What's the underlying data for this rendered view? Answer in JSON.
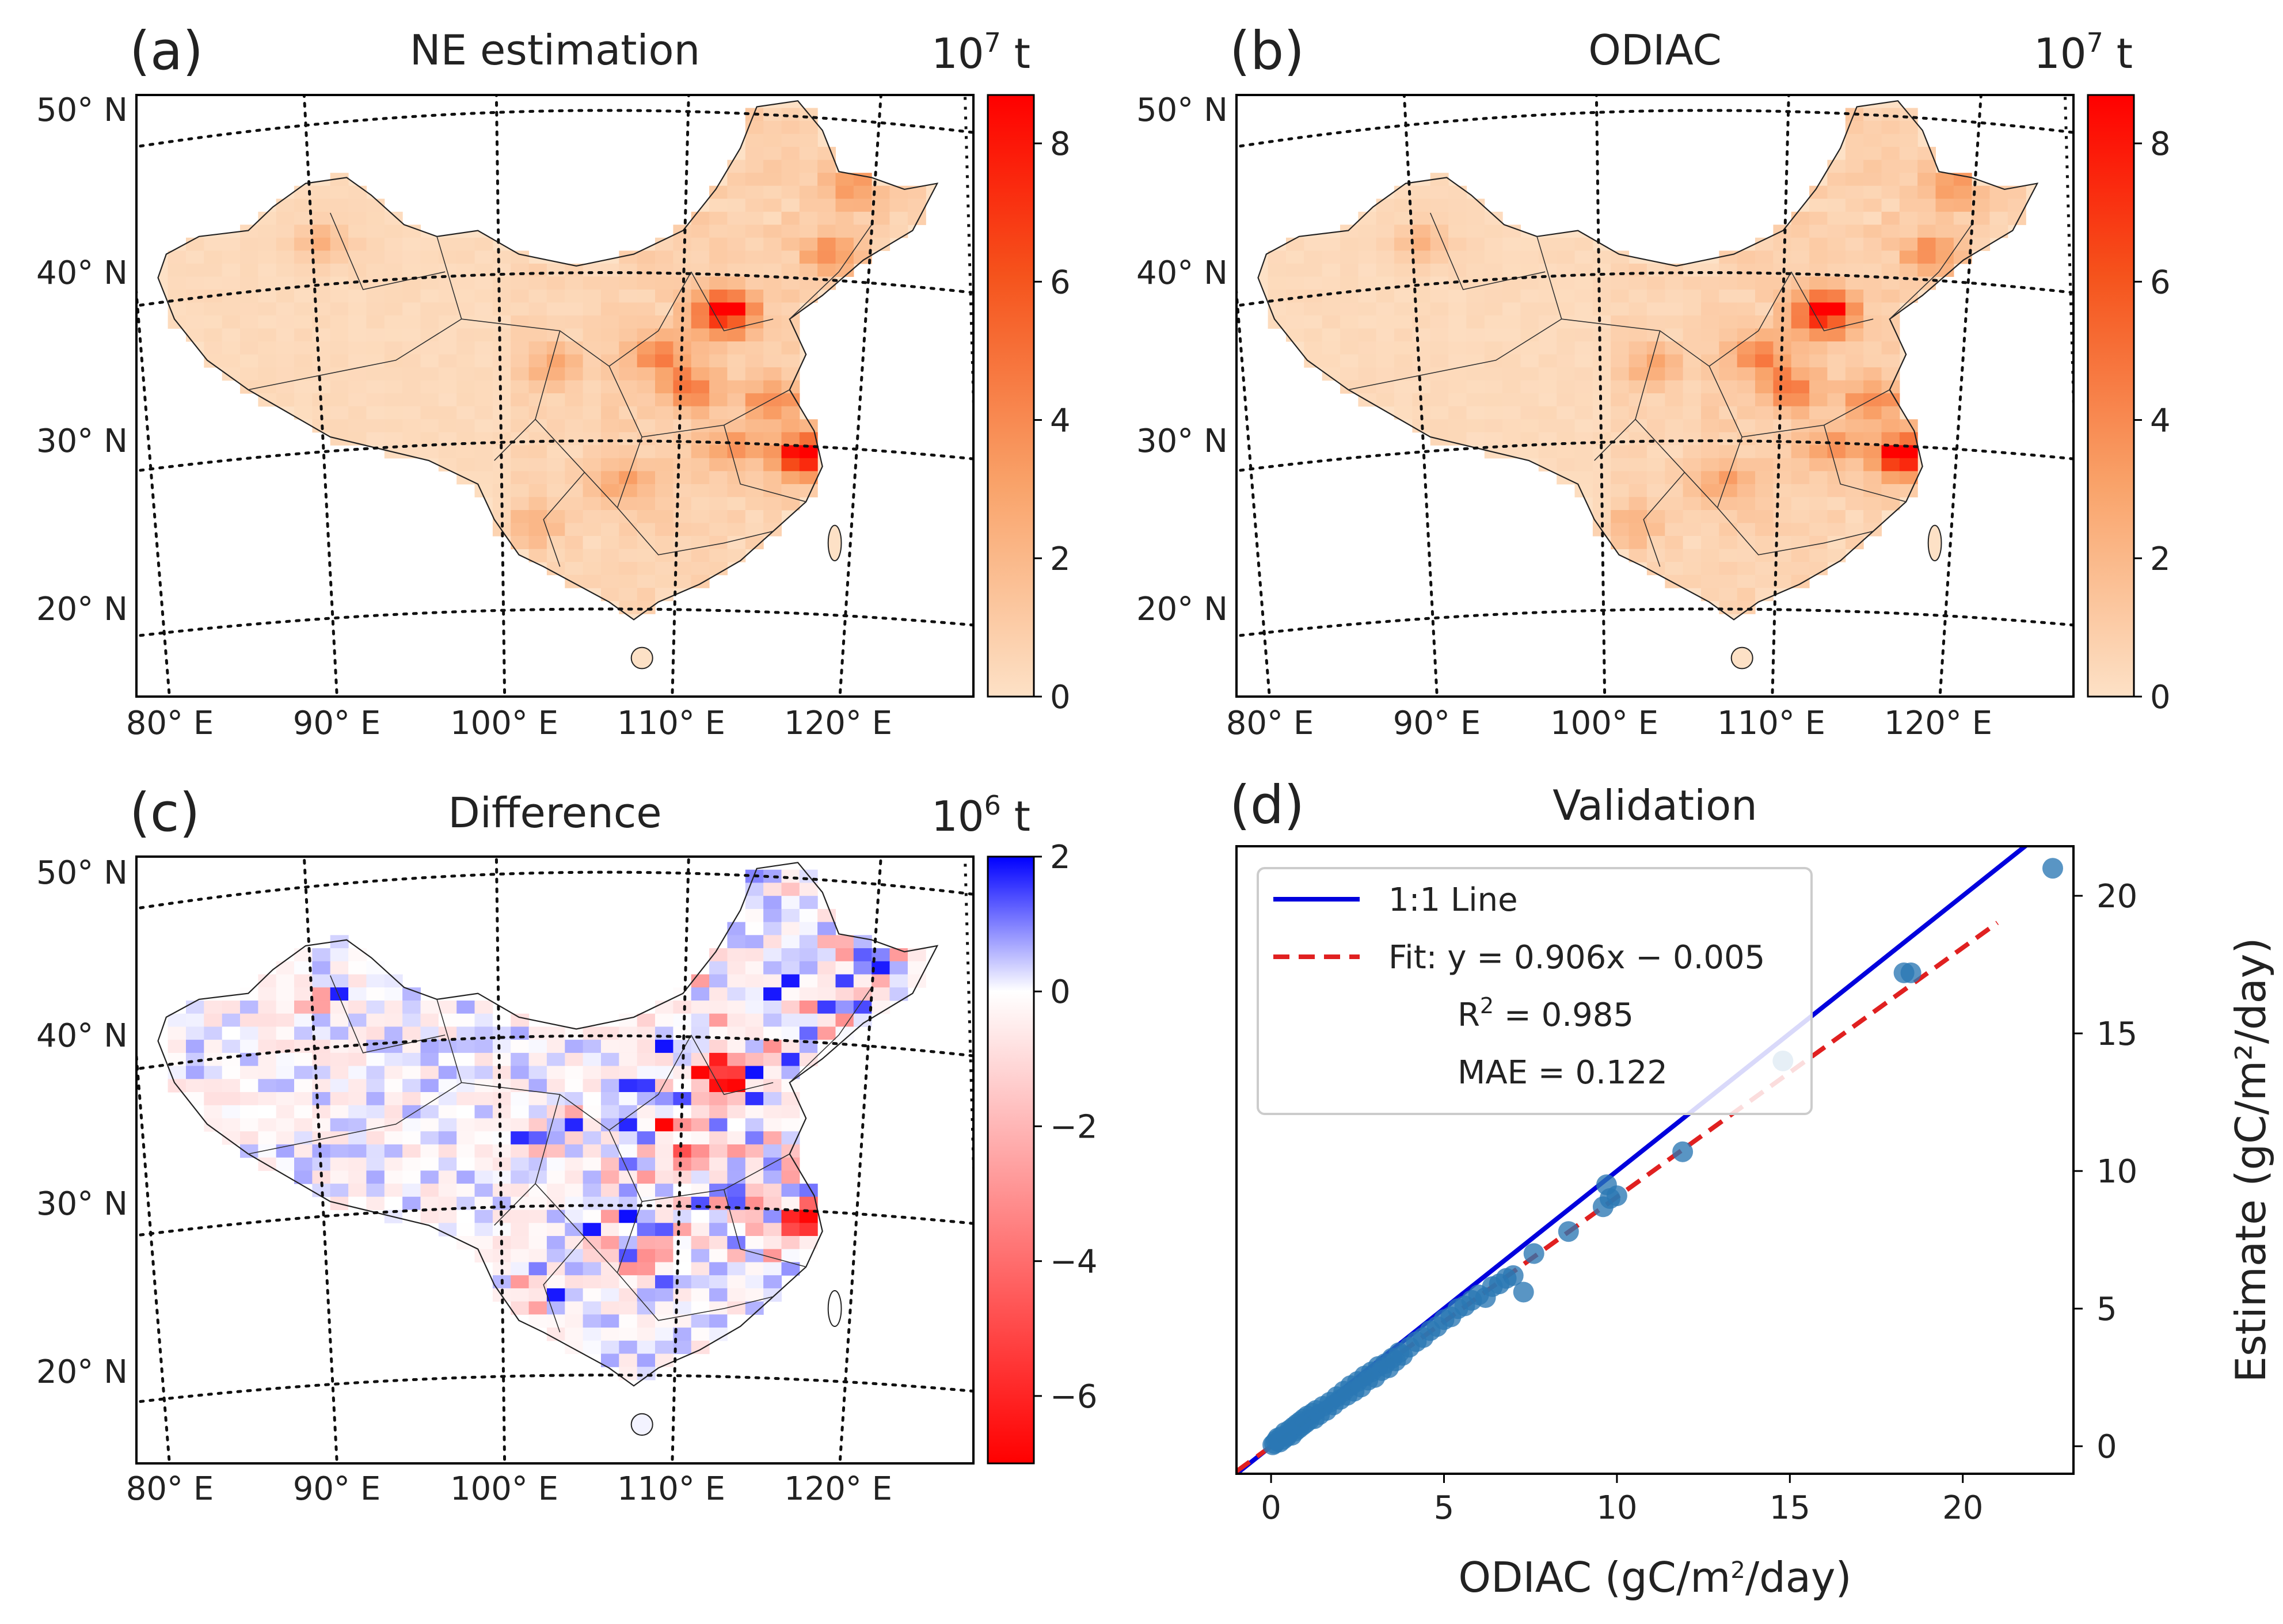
{
  "figure": {
    "panels": [
      {
        "id": "a",
        "label": "(a)",
        "title": "NE estimation",
        "colorbar_unit_base": "10",
        "colorbar_unit_exp": "7",
        "colorbar_unit_suffix": " t",
        "colorbar_ticks": [
          "0",
          "2",
          "4",
          "6",
          "8"
        ],
        "lat_labels": [
          "50° N",
          "40° N",
          "30° N",
          "20° N"
        ],
        "lon_labels": [
          "80° E",
          "90° E",
          "100° E",
          "110° E",
          "120° E"
        ]
      },
      {
        "id": "b",
        "label": "(b)",
        "title": "ODIAC",
        "colorbar_unit_base": "10",
        "colorbar_unit_exp": "7",
        "colorbar_unit_suffix": " t",
        "colorbar_ticks": [
          "0",
          "2",
          "4",
          "6",
          "8"
        ],
        "lat_labels": [
          "50° N",
          "40° N",
          "30° N",
          "20° N"
        ],
        "lon_labels": [
          "80° E",
          "90° E",
          "100° E",
          "110° E",
          "120° E"
        ]
      },
      {
        "id": "c",
        "label": "(c)",
        "title": "Difference",
        "colorbar_unit_base": "10",
        "colorbar_unit_exp": "6",
        "colorbar_unit_suffix": " t",
        "colorbar_ticks": [
          "2",
          "0",
          "−2",
          "−4",
          "−6"
        ],
        "lat_labels": [
          "50° N",
          "40° N",
          "30° N",
          "20° N"
        ],
        "lon_labels": [
          "80° E",
          "90° E",
          "100° E",
          "110° E",
          "120° E"
        ]
      }
    ],
    "colors": {
      "emission_low": "#fde1c6",
      "emission_high": "#ff0000",
      "diff_pos": "#0000ff",
      "diff_zero": "#ffffff",
      "diff_neg": "#ff0000",
      "one_to_one": "#0000dd",
      "fit": "#e02020",
      "points": "#2a77b4"
    }
  },
  "chart_data": [
    {
      "type": "heatmap",
      "panel": "a",
      "title": "NE estimation",
      "colorbar": {
        "min": 0,
        "max": 8.7,
        "ticks": [
          0,
          2,
          4,
          6,
          8
        ],
        "unit": "10^7 t"
      },
      "lat_ticks": [
        50,
        40,
        30,
        20
      ],
      "lon_ticks": [
        80,
        90,
        100,
        110,
        120
      ]
    },
    {
      "type": "heatmap",
      "panel": "b",
      "title": "ODIAC",
      "colorbar": {
        "min": 0,
        "max": 8.7,
        "ticks": [
          0,
          2,
          4,
          6,
          8
        ],
        "unit": "10^7 t"
      },
      "lat_ticks": [
        50,
        40,
        30,
        20
      ],
      "lon_ticks": [
        80,
        90,
        100,
        110,
        120
      ]
    },
    {
      "type": "heatmap",
      "panel": "c",
      "title": "Difference",
      "colorbar": {
        "min": -7,
        "max": 2,
        "ticks": [
          2,
          0,
          -2,
          -4,
          -6
        ],
        "unit": "10^6 t"
      },
      "lat_ticks": [
        50,
        40,
        30,
        20
      ],
      "lon_ticks": [
        80,
        90,
        100,
        110,
        120
      ]
    },
    {
      "type": "scatter",
      "panel": "d",
      "label": "(d)",
      "title": "Validation",
      "xlabel_pre": "ODIAC (gC/m",
      "xlabel_sup": "2",
      "xlabel_post": "/day)",
      "ylabel": "Estimate (gC/m²/day)",
      "xlim": [
        -1,
        23.2
      ],
      "ylim": [
        -1,
        21.8
      ],
      "xticks": [
        0,
        5,
        10,
        15,
        20
      ],
      "yticks": [
        0,
        5,
        10,
        15,
        20
      ],
      "xtick_labels": [
        "0",
        "5",
        "10",
        "15",
        "20"
      ],
      "ytick_labels": [
        "0",
        "5",
        "10",
        "15",
        "20"
      ],
      "legend": {
        "line_label": "1:1 Line",
        "fit_label": "Fit: y = 0.906x − 0.005",
        "r2_pre": "R",
        "r2_sup": "2",
        "r2_post": " = 0.985",
        "mae": "MAE = 0.122"
      },
      "fit": {
        "slope": 0.906,
        "intercept": -0.005,
        "x_range": [
          -1,
          21
        ]
      },
      "points": [
        [
          0.05,
          0.05
        ],
        [
          0.1,
          0.1
        ],
        [
          0.15,
          0.2
        ],
        [
          0.2,
          0.3
        ],
        [
          0.25,
          0.15
        ],
        [
          0.3,
          0.35
        ],
        [
          0.35,
          0.25
        ],
        [
          0.4,
          0.5
        ],
        [
          0.45,
          0.35
        ],
        [
          0.5,
          0.45
        ],
        [
          0.55,
          0.6
        ],
        [
          0.6,
          0.4
        ],
        [
          0.65,
          0.7
        ],
        [
          0.7,
          0.55
        ],
        [
          0.75,
          0.8
        ],
        [
          0.8,
          0.65
        ],
        [
          0.85,
          0.9
        ],
        [
          0.9,
          0.75
        ],
        [
          0.95,
          1.0
        ],
        [
          1.0,
          0.85
        ],
        [
          1.05,
          1.1
        ],
        [
          1.1,
          0.95
        ],
        [
          1.2,
          1.2
        ],
        [
          1.25,
          1.0
        ],
        [
          1.3,
          1.3
        ],
        [
          1.4,
          1.15
        ],
        [
          1.5,
          1.45
        ],
        [
          1.6,
          1.3
        ],
        [
          1.7,
          1.6
        ],
        [
          1.8,
          1.5
        ],
        [
          1.9,
          1.8
        ],
        [
          2.0,
          1.7
        ],
        [
          2.1,
          2.0
        ],
        [
          2.2,
          1.85
        ],
        [
          2.3,
          2.2
        ],
        [
          2.4,
          2.0
        ],
        [
          2.5,
          2.35
        ],
        [
          2.6,
          2.15
        ],
        [
          2.7,
          2.55
        ],
        [
          2.8,
          2.4
        ],
        [
          2.9,
          2.7
        ],
        [
          3.0,
          2.5
        ],
        [
          3.1,
          2.9
        ],
        [
          3.2,
          2.75
        ],
        [
          3.3,
          3.0
        ],
        [
          3.4,
          2.85
        ],
        [
          3.5,
          3.2
        ],
        [
          3.6,
          3.1
        ],
        [
          3.7,
          3.4
        ],
        [
          3.8,
          3.3
        ],
        [
          4.0,
          3.6
        ],
        [
          4.2,
          3.8
        ],
        [
          4.4,
          3.95
        ],
        [
          4.6,
          4.2
        ],
        [
          4.8,
          4.35
        ],
        [
          5.0,
          4.6
        ],
        [
          5.2,
          4.7
        ],
        [
          5.4,
          5.0
        ],
        [
          5.6,
          5.1
        ],
        [
          5.8,
          5.3
        ],
        [
          6.0,
          5.5
        ],
        [
          6.2,
          5.4
        ],
        [
          6.4,
          5.8
        ],
        [
          6.6,
          5.9
        ],
        [
          6.8,
          6.1
        ],
        [
          7.0,
          6.2
        ],
        [
          7.3,
          5.6
        ],
        [
          7.6,
          7.0
        ],
        [
          8.6,
          7.8
        ],
        [
          9.6,
          8.7
        ],
        [
          9.7,
          9.5
        ],
        [
          9.8,
          9.0
        ],
        [
          10.0,
          9.1
        ],
        [
          11.9,
          10.7
        ],
        [
          14.8,
          14.0
        ],
        [
          18.3,
          17.2
        ],
        [
          18.5,
          17.2
        ],
        [
          22.6,
          21.0
        ]
      ]
    }
  ]
}
